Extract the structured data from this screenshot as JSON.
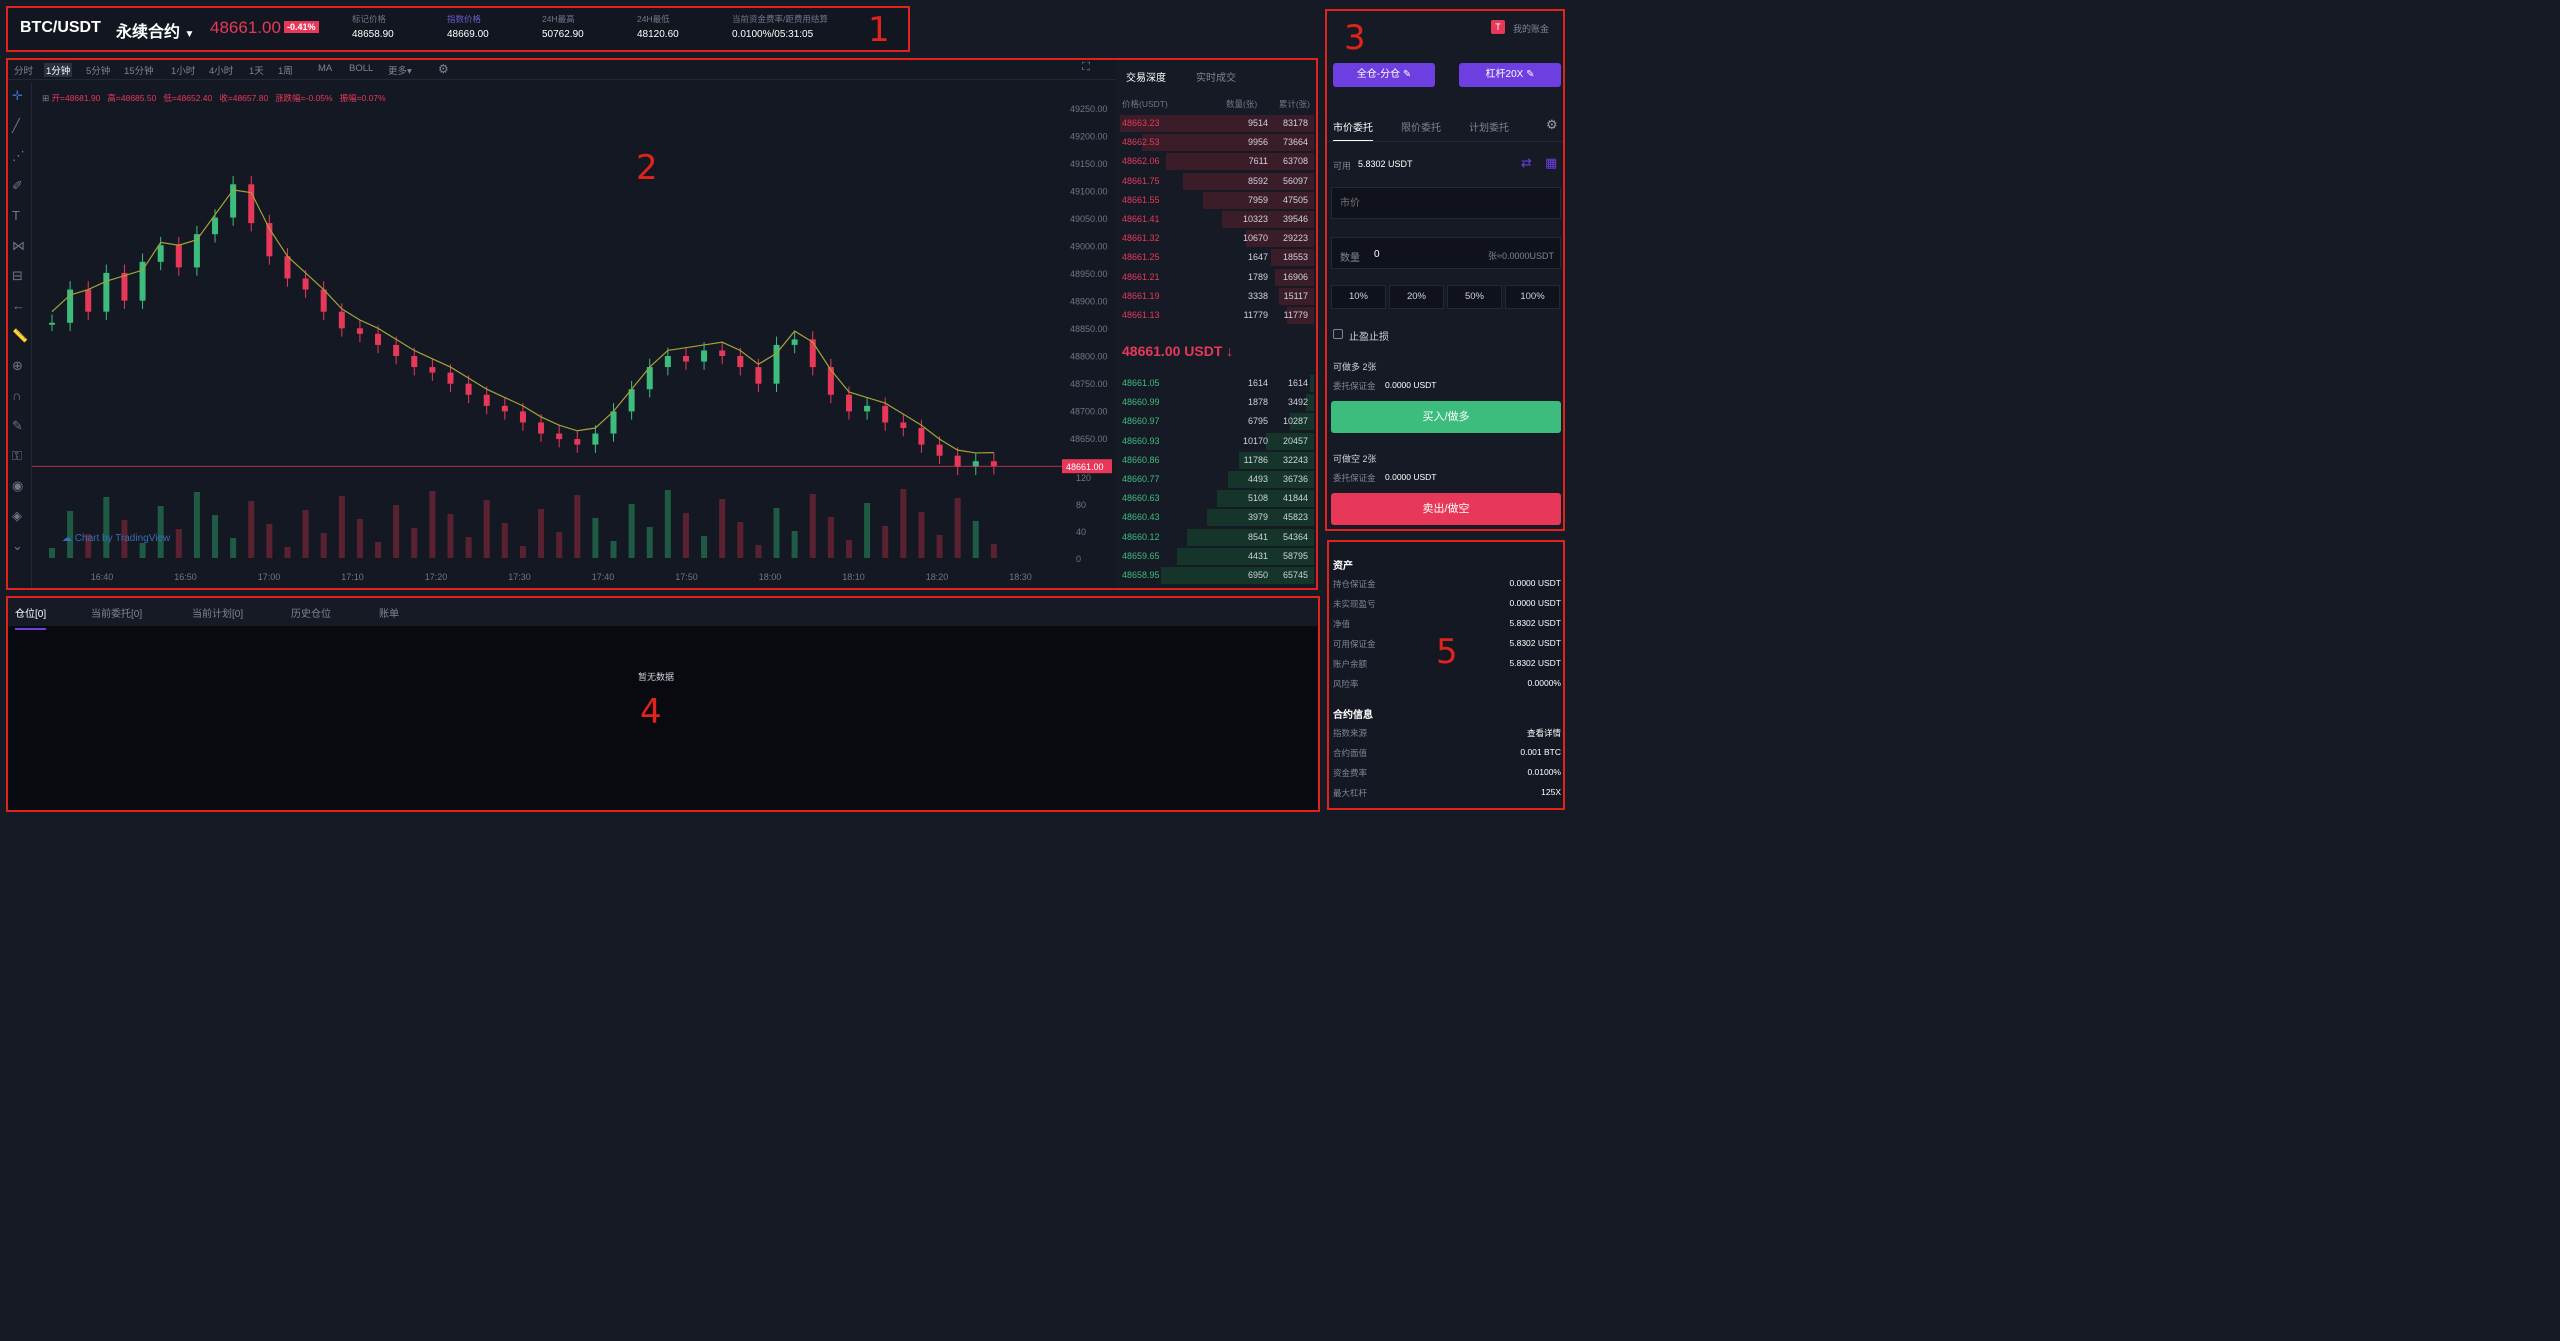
{
  "header": {
    "pair": "BTC/USDT",
    "contract": "永续合约",
    "price": "48661.00",
    "change": "-0.41%",
    "stats": [
      {
        "label": "标记价格",
        "value": "48658.90"
      },
      {
        "label": "指数价格",
        "value": "48669.00"
      },
      {
        "label": "24H最高",
        "value": "50762.90"
      },
      {
        "label": "24H最低",
        "value": "48120.60"
      },
      {
        "label": "当前资金费率/距费用结算",
        "value": "0.0100%/05:31:05"
      }
    ]
  },
  "chart_toolbar": {
    "intervals": [
      "分时",
      "1分钟",
      "5分钟",
      "15分钟",
      "1小时",
      "4小时",
      "1天",
      "1周"
    ],
    "active_interval": "1分钟",
    "indicators": [
      "MA",
      "BOLL",
      "更多▾"
    ]
  },
  "ohlc_line": {
    "open": "开=48681.90",
    "high": "高=48685.50",
    "low": "低=48652.40",
    "close": "收=48657.80",
    "change": "涨跌幅=-0.05%",
    "amplitude": "振幅=0.07%"
  },
  "watermark": "Chart by TradingView",
  "chart_data": {
    "type": "candlestick",
    "price_axis": [
      "49250.00",
      "49200.00",
      "49150.00",
      "49100.00",
      "49050.00",
      "49000.00",
      "48950.00",
      "48900.00",
      "48850.00",
      "48800.00",
      "48750.00",
      "48700.00",
      "48650.00",
      "48600.00"
    ],
    "ylim": [
      48600,
      49250
    ],
    "volume_axis": [
      "120",
      "80",
      "40",
      "0"
    ],
    "time_axis": [
      "16:40",
      "16:50",
      "17:00",
      "17:10",
      "17:20",
      "17:30",
      "17:40",
      "17:50",
      "18:00",
      "18:10",
      "18:20",
      "18:30"
    ],
    "last_price_label": "48661.00",
    "close_series": [
      48920,
      48980,
      48940,
      49010,
      48960,
      49030,
      49060,
      49020,
      49080,
      49110,
      49170,
      49100,
      49040,
      49000,
      48980,
      48940,
      48910,
      48900,
      48880,
      48860,
      48840,
      48830,
      48810,
      48790,
      48770,
      48760,
      48740,
      48720,
      48710,
      48700,
      48720,
      48760,
      48800,
      48840,
      48860,
      48850,
      48870,
      48860,
      48840,
      48810,
      48880,
      48890,
      48840,
      48790,
      48760,
      48770,
      48740,
      48730,
      48700,
      48680,
      48660,
      48670,
      48661
    ]
  },
  "orderbook": {
    "tabs": [
      "交易深度",
      "实时成交"
    ],
    "headers": [
      "价格(USDT)",
      "数量(张)",
      "累计(张)"
    ],
    "asks": [
      [
        "48663.23",
        "9514",
        "83178"
      ],
      [
        "48662.53",
        "9956",
        "73664"
      ],
      [
        "48662.06",
        "7611",
        "63708"
      ],
      [
        "48661.75",
        "8592",
        "56097"
      ],
      [
        "48661.55",
        "7959",
        "47505"
      ],
      [
        "48661.41",
        "10323",
        "39546"
      ],
      [
        "48661.32",
        "10670",
        "29223"
      ],
      [
        "48661.25",
        "1647",
        "18553"
      ],
      [
        "48661.21",
        "1789",
        "16906"
      ],
      [
        "48661.19",
        "3338",
        "15117"
      ],
      [
        "48661.13",
        "11779",
        "11779"
      ]
    ],
    "last_price": "48661.00 USDT",
    "bids": [
      [
        "48661.05",
        "1614",
        "1614"
      ],
      [
        "48660.99",
        "1878",
        "3492"
      ],
      [
        "48660.97",
        "6795",
        "10287"
      ],
      [
        "48660.93",
        "10170",
        "20457"
      ],
      [
        "48660.86",
        "11786",
        "32243"
      ],
      [
        "48660.77",
        "4493",
        "36736"
      ],
      [
        "48660.63",
        "5108",
        "41844"
      ],
      [
        "48660.43",
        "3979",
        "45823"
      ],
      [
        "48660.12",
        "8541",
        "54364"
      ],
      [
        "48659.65",
        "4431",
        "58795"
      ],
      [
        "48658.95",
        "6950",
        "65745"
      ]
    ]
  },
  "trade": {
    "my_assets": "我的账金",
    "margin_mode": "全仓-分仓",
    "leverage": "杠杆20X",
    "order_tabs": [
      "市价委托",
      "限价委托",
      "计划委托"
    ],
    "available_label": "可用",
    "available_value": "5.8302 USDT",
    "price_placeholder": "市价",
    "qty_label": "数量",
    "qty_value": "0",
    "qty_right": "张≈0.0000USDT",
    "percents": [
      "10%",
      "20%",
      "50%",
      "100%"
    ],
    "tpsl": "止盈止损",
    "long_can": "可做多 2张",
    "long_margin_label": "委托保证金",
    "long_margin_value": "0.0000 USDT",
    "buy_label": "买入/做多",
    "short_can": "可做空 2张",
    "short_margin_label": "委托保证金",
    "short_margin_value": "0.0000 USDT",
    "sell_label": "卖出/做空",
    "buy_color": "#3dbd7d",
    "sell_color": "#e8385a"
  },
  "assets": {
    "title": "资产",
    "rows": [
      [
        "持仓保证金",
        "0.0000 USDT"
      ],
      [
        "未实现盈亏",
        "0.0000 USDT"
      ],
      [
        "净值",
        "5.8302 USDT"
      ],
      [
        "可用保证金",
        "5.8302 USDT"
      ],
      [
        "账户余额",
        "5.8302 USDT"
      ],
      [
        "风险率",
        "0.0000%"
      ]
    ],
    "contract_title": "合约信息",
    "contract_rows": [
      [
        "指数来源",
        "查看详情"
      ],
      [
        "合约面值",
        "0.001 BTC"
      ],
      [
        "资金费率",
        "0.0100%"
      ],
      [
        "最大杠杆",
        "125X"
      ]
    ]
  },
  "positions": {
    "tabs": [
      "仓位[0]",
      "当前委托[0]",
      "当前计划[0]",
      "历史仓位",
      "账单"
    ],
    "empty": "暂无数据"
  },
  "callouts": [
    "1",
    "2",
    "3",
    "4",
    "5"
  ]
}
